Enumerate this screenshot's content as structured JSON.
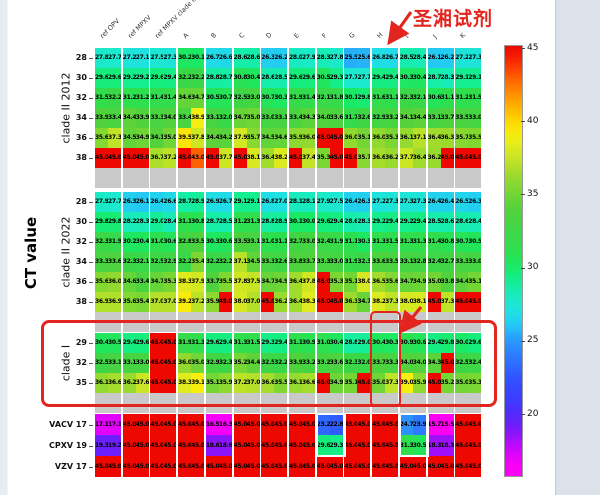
{
  "annotation": {
    "label": "圣湘试剂",
    "color": "#e3251f",
    "points_to_column": "H"
  },
  "accent_red": "#e3251f",
  "chart_data": {
    "type": "heatmap",
    "title": "",
    "xlabel": "",
    "ylabel": "CT value",
    "replicates_per_column": 2,
    "columns": [
      "ref OPV",
      "ref MPXV",
      "ref MPXV clade II",
      "A",
      "B",
      "C",
      "D",
      "E",
      "F",
      "G",
      "H",
      "I",
      "J",
      "K"
    ],
    "colorbar": {
      "ticks": [
        45,
        40,
        35,
        30,
        25,
        20
      ],
      "top_value": 45.2,
      "bottom_value": 15.7,
      "position": "right"
    },
    "colormap": [
      [
        15.5,
        "#ff00f0"
      ],
      [
        16.8,
        "#f200fa"
      ],
      [
        17.8,
        "#be0afa"
      ],
      [
        18.6,
        "#8c14f8"
      ],
      [
        19.5,
        "#5f23fa"
      ],
      [
        21.0,
        "#3c3cff"
      ],
      [
        22.5,
        "#3054ff"
      ],
      [
        24.0,
        "#2d7dff"
      ],
      [
        25.2,
        "#28a0fc"
      ],
      [
        26.0,
        "#24c6f4"
      ],
      [
        26.8,
        "#20dee6"
      ],
      [
        27.6,
        "#1ce8d0"
      ],
      [
        28.4,
        "#18ecb4"
      ],
      [
        29.2,
        "#14ee8c"
      ],
      [
        30.0,
        "#18ea68"
      ],
      [
        31.0,
        "#2ce050"
      ],
      [
        32.5,
        "#3ed646"
      ],
      [
        34.0,
        "#52d23c"
      ],
      [
        35.2,
        "#76d634"
      ],
      [
        36.2,
        "#98da2e"
      ],
      [
        37.2,
        "#bce228"
      ],
      [
        38.2,
        "#dcea20"
      ],
      [
        39.0,
        "#f6f010"
      ],
      [
        40.0,
        "#ffd800"
      ],
      [
        41.5,
        "#ffa000"
      ],
      [
        43.0,
        "#ff6000"
      ],
      [
        44.2,
        "#f82800"
      ],
      [
        45.0,
        "#ee0800"
      ]
    ],
    "groups": [
      {
        "label": "clade II 2012",
        "rows": [
          {
            "label": "28",
            "values": [
              27.8,
              27.7,
              27.2,
              27.1,
              27.5,
              27.3,
              30.2,
              30.1,
              26.7,
              26.6,
              28.6,
              28.6,
              26.3,
              26.2,
              28.0,
              27.9,
              28.3,
              27.8,
              25.5,
              25.6,
              26.8,
              26.7,
              28.5,
              28.4,
              26.1,
              26.2,
              27.2,
              27.3
            ]
          },
          {
            "label": "30",
            "values": [
              29.6,
              29.6,
              29.2,
              29.2,
              29.6,
              29.4,
              32.2,
              32.2,
              28.8,
              28.7,
              30.8,
              30.4,
              28.6,
              28.5,
              29.6,
              29.6,
              30.5,
              29.3,
              27.7,
              27.7,
              29.4,
              29.4,
              30.3,
              30.4,
              28.7,
              28.3,
              29.1,
              29.1
            ]
          },
          {
            "label": "32",
            "values": [
              31.5,
              32.2,
              31.2,
              31.2,
              31.4,
              31.4,
              34.6,
              34.7,
              30.5,
              30.7,
              32.5,
              33.0,
              30.7,
              30.3,
              31.9,
              31.4,
              32.1,
              31.8,
              30.1,
              29.8,
              31.6,
              31.1,
              32.3,
              32.1,
              30.6,
              31.1,
              31.2,
              31.5
            ]
          },
          {
            "label": "34",
            "values": [
              33.9,
              33.4,
              34.4,
              33.9,
              33.3,
              34.0,
              33.4,
              38.9,
              33.1,
              32.0,
              34.7,
              35.0,
              33.0,
              33.1,
              33.4,
              34.3,
              34.0,
              33.6,
              31.7,
              32.6,
              32.9,
              33.2,
              34.1,
              34.4,
              33.1,
              33.7,
              33.5,
              33.0
            ]
          },
          {
            "label": "36",
            "values": [
              35.6,
              37.3,
              34.5,
              34.9,
              34.1,
              35.0,
              39.5,
              37.8,
              34.4,
              34.2,
              37.9,
              35.7,
              34.5,
              34.6,
              35.9,
              36.0,
              45.0,
              45.0,
              36.0,
              35.1,
              36.0,
              35.3,
              36.1,
              37.1,
              36.4,
              36.3,
              35.7,
              35.5
            ]
          },
          {
            "label": "38",
            "values": [
              45.0,
              45.0,
              45.0,
              45.0,
              36.7,
              37.2,
              45.0,
              43.0,
              45.0,
              37.7,
              45.0,
              38.1,
              36.4,
              38.2,
              45.0,
              37.4,
              35.3,
              45.0,
              45.0,
              35.7,
              36.6,
              36.2,
              37.7,
              36.4,
              36.2,
              45.0,
              45.0,
              45.0
            ]
          }
        ]
      },
      {
        "label": "clade II 2022",
        "rows": [
          {
            "label": "28",
            "values": [
              27.9,
              27.7,
              26.3,
              26.1,
              26.4,
              26.6,
              28.7,
              28.9,
              26.9,
              26.7,
              29.1,
              29.1,
              26.8,
              27.0,
              28.1,
              28.1,
              27.9,
              27.5,
              26.4,
              26.3,
              27.2,
              27.3,
              27.3,
              27.3,
              26.4,
              26.4,
              26.5,
              26.3
            ]
          },
          {
            "label": "30",
            "values": [
              29.8,
              29.8,
              28.2,
              28.3,
              29.0,
              28.4,
              31.1,
              30.8,
              28.7,
              28.5,
              31.2,
              31.3,
              28.8,
              28.9,
              30.1,
              30.0,
              29.6,
              29.4,
              28.6,
              28.3,
              29.2,
              29.4,
              29.2,
              29.4,
              28.5,
              28.6,
              28.6,
              28.4
            ]
          },
          {
            "label": "32",
            "values": [
              32.3,
              31.9,
              30.2,
              30.4,
              31.0,
              30.6,
              32.8,
              33.5,
              30.3,
              30.6,
              33.5,
              33.1,
              31.0,
              31.1,
              32.7,
              33.0,
              32.4,
              31.9,
              31.1,
              30.3,
              31.3,
              31.5,
              31.3,
              31.3,
              31.4,
              30.8,
              30.7,
              30.5
            ]
          },
          {
            "label": "34",
            "values": [
              33.3,
              33.6,
              32.3,
              32.1,
              32.5,
              32.9,
              32.2,
              35.4,
              32.2,
              32.2,
              37.1,
              34.5,
              33.3,
              32.6,
              33.8,
              33.7,
              33.3,
              33.0,
              31.9,
              32.3,
              33.6,
              33.5,
              33.1,
              32.8,
              32.4,
              32.7,
              33.3,
              33.0
            ]
          },
          {
            "label": "36",
            "values": [
              35.6,
              36.0,
              34.6,
              33.4,
              34.7,
              35.3,
              38.3,
              37.9,
              33.7,
              35.5,
              37.8,
              37.5,
              34.7,
              34.9,
              36.4,
              37.8,
              45.0,
              35.3,
              35.1,
              38.0,
              36.5,
              35.6,
              34.7,
              34.9,
              35.0,
              33.8,
              34.4,
              35.1
            ]
          },
          {
            "label": "38",
            "values": [
              36.9,
              36.9,
              35.6,
              35.4,
              37.0,
              37.0,
              39.2,
              37.2,
              35.9,
              45.0,
              38.0,
              37.0,
              45.0,
              36.2,
              36.4,
              38.3,
              45.0,
              45.0,
              36.3,
              34.7,
              38.2,
              37.3,
              38.0,
              38.1,
              45.0,
              37.3,
              45.0,
              45.0
            ]
          }
        ]
      },
      {
        "label": "clade I",
        "rows": [
          {
            "label": "29",
            "values": [
              30.4,
              30.5,
              29.4,
              29.6,
              45.0,
              45.0,
              31.9,
              31.3,
              29.6,
              29.4,
              31.3,
              31.5,
              29.3,
              29.4,
              31.1,
              30.9,
              31.0,
              30.4,
              28.8,
              29.0,
              30.4,
              30.3,
              30.9,
              30.6,
              29.4,
              29.8,
              30.0,
              29.6
            ]
          },
          {
            "label": "32",
            "values": [
              32.5,
              33.1,
              33.1,
              33.0,
              45.0,
              45.0,
              36.0,
              35.0,
              32.9,
              32.3,
              35.2,
              34.4,
              32.5,
              32.2,
              33.9,
              33.2,
              33.2,
              33.6,
              32.3,
              32.0,
              33.7,
              33.3,
              34.0,
              34.0,
              34.3,
              45.0,
              32.5,
              32.4
            ]
          },
          {
            "label": "35",
            "values": [
              36.1,
              36.6,
              36.2,
              37.6,
              45.0,
              45.0,
              38.3,
              39.1,
              35.1,
              35.9,
              37.2,
              37.0,
              36.6,
              35.5,
              36.1,
              36.6,
              45.0,
              34.9,
              35.1,
              45.0,
              35.0,
              37.3,
              39.0,
              35.9,
              45.0,
              35.2,
              35.0,
              35.3
            ]
          }
        ]
      },
      {
        "label": "",
        "rows": [
          {
            "label": "VACV 17",
            "values": [
              17.1,
              17.1,
              45.0,
              45.0,
              45.0,
              45.0,
              45.0,
              45.0,
              16.5,
              16.3,
              45.0,
              45.0,
              45.0,
              45.0,
              45.0,
              45.0,
              23.2,
              22.8,
              45.0,
              45.0,
              45.0,
              45.0,
              24.7,
              23.9,
              15.7,
              15.5,
              45.0,
              45.0
            ]
          },
          {
            "label": "CPXV 19",
            "values": [
              19.3,
              19.2,
              45.0,
              45.0,
              45.0,
              45.0,
              45.0,
              45.0,
              18.6,
              18.6,
              45.0,
              45.0,
              45.0,
              45.0,
              45.0,
              45.0,
              29.6,
              29.3,
              45.0,
              45.0,
              45.0,
              45.0,
              31.3,
              30.5,
              18.3,
              18.3,
              45.0,
              45.0
            ]
          },
          {
            "label": "VZV 17",
            "values": [
              45.0,
              45.0,
              45.0,
              45.0,
              45.0,
              45.0,
              45.0,
              45.0,
              45.0,
              45.0,
              45.0,
              45.0,
              45.0,
              45.0,
              45.0,
              45.0,
              45.0,
              45.0,
              45.0,
              45.0,
              45.0,
              45.0,
              45.0,
              45.0,
              45.0,
              45.0,
              45.0,
              45.0
            ]
          }
        ]
      }
    ],
    "highlights": {
      "clade_I_group_boxed": true,
      "boxed_column": "H",
      "white_boxed_cells": [
        {
          "column": "F",
          "rows": [
            "VACV 17",
            "CPXV 19"
          ]
        },
        {
          "column": "I",
          "rows": [
            "VACV 17",
            "CPXV 19"
          ]
        }
      ]
    }
  }
}
